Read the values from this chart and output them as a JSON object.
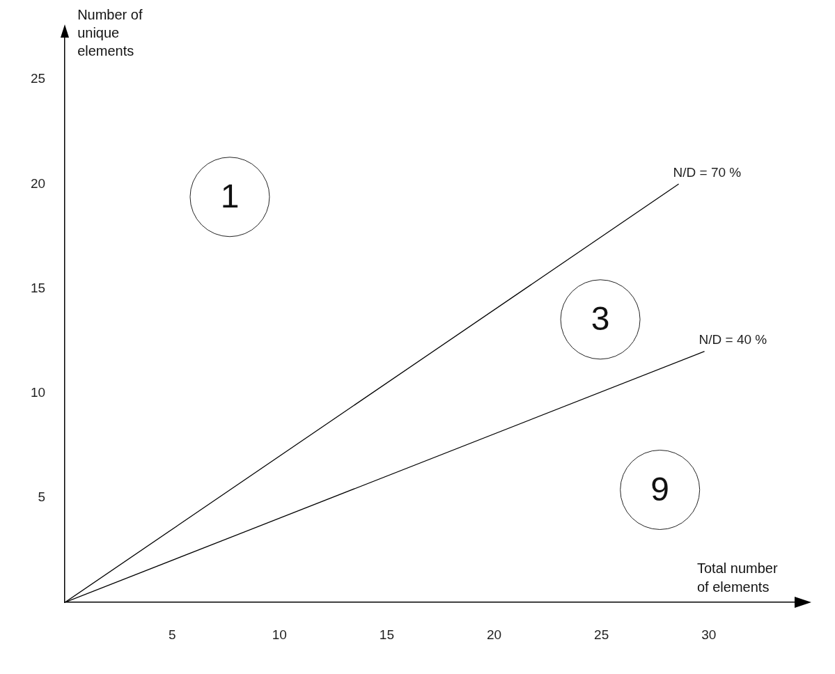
{
  "chart_data": {
    "type": "line",
    "xlabel": "Total number of elements",
    "ylabel": "Number of unique elements",
    "xlim": [
      0,
      34
    ],
    "ylim": [
      0,
      27
    ],
    "xticks": [
      5,
      10,
      15,
      20,
      25,
      30
    ],
    "yticks": [
      5,
      10,
      15,
      20,
      25
    ],
    "grid": false,
    "legend": false,
    "series": [
      {
        "name": "N/D = 70 %",
        "color": "#000000",
        "x": [
          0,
          28.6
        ],
        "values": [
          0,
          20
        ]
      },
      {
        "name": "N/D = 40 %",
        "color": "#000000",
        "x": [
          0,
          29.8
        ],
        "values": [
          0,
          12
        ]
      }
    ],
    "annotations": [
      "1",
      "3",
      "9"
    ]
  }
}
